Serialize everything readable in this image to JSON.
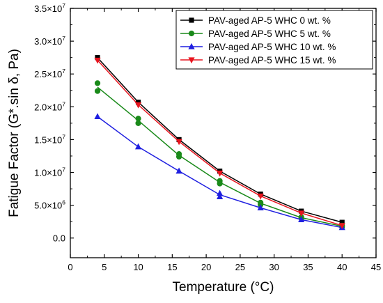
{
  "chart_data": {
    "type": "line",
    "xlabel": "Temperature (°C)",
    "ylabel": "Fatigue Factor (G*.sin δ, Pa)",
    "xlim": [
      0,
      45
    ],
    "ylim": [
      -3000000,
      35000000
    ],
    "x_ticks": [
      0,
      5,
      10,
      15,
      20,
      25,
      30,
      35,
      40,
      45
    ],
    "x_tick_labels": [
      "0",
      "5",
      "10",
      "15",
      "20",
      "25",
      "30",
      "35",
      "40",
      "45"
    ],
    "y_ticks": [
      {
        "value": 0,
        "mantissa": "0.0",
        "exponent": ""
      },
      {
        "value": 5000000,
        "mantissa": "5.0×10",
        "exponent": "6"
      },
      {
        "value": 10000000,
        "mantissa": "1.0×10",
        "exponent": "7"
      },
      {
        "value": 15000000,
        "mantissa": "1.5×10",
        "exponent": "7"
      },
      {
        "value": 20000000,
        "mantissa": "2.0×10",
        "exponent": "7"
      },
      {
        "value": 25000000,
        "mantissa": "2.5×10",
        "exponent": "7"
      },
      {
        "value": 30000000,
        "mantissa": "3.0×10",
        "exponent": "7"
      },
      {
        "value": 35000000,
        "mantissa": "3.5×10",
        "exponent": "7"
      }
    ],
    "grid": false,
    "legend_position": "top-right",
    "series": [
      {
        "name": "PAV-aged AP-5 WHC 0 wt. %",
        "color": "#000000",
        "marker": "square",
        "points": [
          [
            4,
            27500000
          ],
          [
            10,
            20700000
          ],
          [
            16,
            15000000
          ],
          [
            22,
            10200000
          ],
          [
            28,
            6700000
          ],
          [
            34,
            4100000
          ],
          [
            40,
            2400000
          ]
        ],
        "replicates": [
          [
            4,
            27500000
          ],
          [
            10,
            20700000
          ],
          [
            16,
            15000000
          ],
          [
            22,
            10200000
          ],
          [
            28,
            6700000
          ],
          [
            34,
            4100000
          ],
          [
            40,
            2400000
          ]
        ]
      },
      {
        "name": "PAV-aged AP-5 WHC 5 wt. %",
        "color": "#1a8a1a",
        "marker": "circle",
        "points": [
          [
            4,
            23000000
          ],
          [
            10,
            17900000
          ],
          [
            16,
            12600000
          ],
          [
            22,
            8500000
          ],
          [
            28,
            5300000
          ],
          [
            34,
            3100000
          ],
          [
            40,
            1800000
          ]
        ],
        "replicates": [
          [
            4,
            23600000
          ],
          [
            4,
            22400000
          ],
          [
            10,
            18200000
          ],
          [
            10,
            17500000
          ],
          [
            16,
            12800000
          ],
          [
            16,
            12400000
          ],
          [
            22,
            8700000
          ],
          [
            22,
            8300000
          ],
          [
            28,
            5400000
          ],
          [
            28,
            5100000
          ],
          [
            34,
            3200000
          ],
          [
            34,
            3000000
          ],
          [
            40,
            1900000
          ],
          [
            40,
            1700000
          ]
        ]
      },
      {
        "name": "PAV-aged AP-5 WHC 10 wt. %",
        "color": "#1f1fe0",
        "marker": "triangle-up",
        "points": [
          [
            4,
            18500000
          ],
          [
            10,
            13900000
          ],
          [
            16,
            10200000
          ],
          [
            22,
            6600000
          ],
          [
            28,
            4600000
          ],
          [
            34,
            2800000
          ],
          [
            40,
            1600000
          ]
        ],
        "replicates": [
          [
            4,
            18500000
          ],
          [
            10,
            13900000
          ],
          [
            16,
            10200000
          ],
          [
            22,
            6800000
          ],
          [
            22,
            6300000
          ],
          [
            28,
            4600000
          ],
          [
            34,
            2800000
          ],
          [
            40,
            1600000
          ]
        ]
      },
      {
        "name": "PAV-aged AP-5 WHC 15 wt. %",
        "color": "#e8141e",
        "marker": "triangle-down",
        "points": [
          [
            4,
            27100000
          ],
          [
            10,
            20300000
          ],
          [
            16,
            14700000
          ],
          [
            22,
            9900000
          ],
          [
            28,
            6400000
          ],
          [
            34,
            3800000
          ],
          [
            40,
            1900000
          ]
        ],
        "replicates": [
          [
            4,
            27100000
          ],
          [
            10,
            20300000
          ],
          [
            16,
            14700000
          ],
          [
            22,
            9900000
          ],
          [
            28,
            6400000
          ],
          [
            34,
            3800000
          ],
          [
            40,
            1900000
          ]
        ]
      }
    ]
  }
}
